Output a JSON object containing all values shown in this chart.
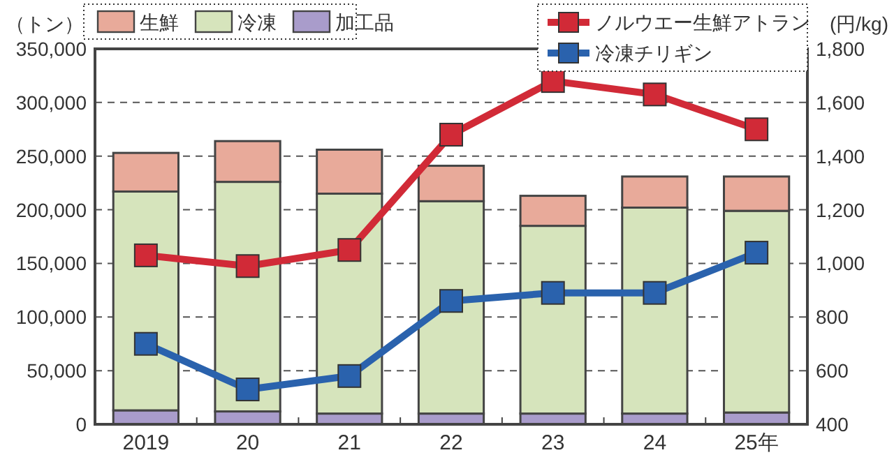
{
  "chart_data": {
    "type": "bar",
    "stacked": true,
    "ylabel": "（トン）",
    "y2label": "(円/kg)",
    "categories": [
      "2019",
      "20",
      "21",
      "22",
      "23",
      "24",
      "25年"
    ],
    "series": [
      {
        "name": "加工品",
        "color": "#a99ccb",
        "values": [
          13000,
          12000,
          10000,
          10000,
          10000,
          10000,
          11000
        ]
      },
      {
        "name": "冷凍",
        "color": "#d6e4bc",
        "values": [
          204000,
          214000,
          205000,
          198000,
          175000,
          192000,
          188000
        ]
      },
      {
        "name": "生鮮",
        "color": "#e8aa9a",
        "values": [
          36000,
          38000,
          41000,
          33000,
          28000,
          29000,
          32000
        ]
      },
      {
        "name": "ノルウエー生鮮アトラン",
        "type": "line",
        "axis": "y2",
        "color": "#d12a37",
        "values": [
          1030,
          990,
          1050,
          1480,
          1680,
          1630,
          1500
        ]
      },
      {
        "name": "冷凍チリギン",
        "type": "line",
        "axis": "y2",
        "color": "#2a62ad",
        "values": [
          700,
          530,
          580,
          860,
          890,
          890,
          1040
        ]
      }
    ],
    "ylim": [
      0,
      350000
    ],
    "yticks": [
      0,
      {
        "value": 50000,
        "label": "50,000"
      },
      {
        "value": 100000,
        "label": "100,000"
      },
      {
        "value": 150000,
        "label": "150,000"
      },
      {
        "value": 200000,
        "label": "200,000"
      },
      {
        "value": 250000,
        "label": "250,000"
      },
      {
        "value": 300000,
        "label": "300,000"
      },
      {
        "value": 350000,
        "label": "350,000"
      }
    ],
    "y2lim": [
      400,
      1800
    ],
    "y2ticks": [
      400,
      600,
      800,
      {
        "value": 1000,
        "label": "1,000"
      },
      {
        "value": 1200,
        "label": "1,200"
      },
      {
        "value": 1400,
        "label": "1,400"
      },
      {
        "value": 1600,
        "label": "1,600"
      },
      {
        "value": 1800,
        "label": "1,800"
      }
    ],
    "grid": "y",
    "legend": "top",
    "marker": "square",
    "line_style": "solid"
  }
}
